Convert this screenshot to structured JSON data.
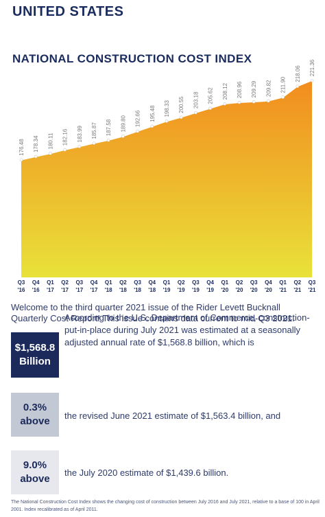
{
  "header": {
    "country": "UNITED STATES",
    "chart_title": "NATIONAL CONSTRUCTION COST INDEX"
  },
  "chart_data": {
    "type": "area",
    "title": "NATIONAL CONSTRUCTION COST INDEX",
    "categories": [
      [
        "Q3",
        "'16"
      ],
      [
        "Q4",
        "'16"
      ],
      [
        "Q1",
        "'17"
      ],
      [
        "Q2",
        "'17"
      ],
      [
        "Q3",
        "'17"
      ],
      [
        "Q4",
        "'17"
      ],
      [
        "Q1",
        "'18"
      ],
      [
        "Q2",
        "'18"
      ],
      [
        "Q3",
        "'18"
      ],
      [
        "Q4",
        "'18"
      ],
      [
        "Q1",
        "'19"
      ],
      [
        "Q2",
        "'19"
      ],
      [
        "Q3",
        "'19"
      ],
      [
        "Q4",
        "'19"
      ],
      [
        "Q1",
        "'20"
      ],
      [
        "Q2",
        "'20"
      ],
      [
        "Q3",
        "'20"
      ],
      [
        "Q4",
        "'20"
      ],
      [
        "Q1",
        "'21"
      ],
      [
        "Q2",
        "'21"
      ],
      [
        "Q3",
        "'21"
      ]
    ],
    "values": [
      176.48,
      178.34,
      180.11,
      182.16,
      183.99,
      185.87,
      187.58,
      189.8,
      192.66,
      195.48,
      198.33,
      200.55,
      203.18,
      205.62,
      208.12,
      208.96,
      209.29,
      209.82,
      211.9,
      218.06,
      221.36
    ],
    "value_labels": [
      "176.48",
      "178.34",
      "180.11",
      "182.16",
      "183.99",
      "185.87",
      "187.58",
      "189.80",
      "192.66",
      "195.48",
      "198.33",
      "200.55",
      "203.18",
      "205.62",
      "208.12",
      "208.96",
      "209.29",
      "209.82",
      "211.90",
      "218.06",
      "221.36"
    ],
    "ylim": [
      110,
      230
    ],
    "grid": false,
    "colors": {
      "top": "#f28c1e",
      "bottom": "#e9e23a",
      "line": "#ffffff",
      "label": "#7a7a7a",
      "axis_label": "#1b2a5b"
    }
  },
  "intro_text": "Welcome to the third quarter 2021 issue of the Rider Levett Bucknall Quarterly Cost Report! This issue contains data current to mid-Q3 2021.",
  "stats": [
    {
      "value": "$1,568.8",
      "unit": "Billion",
      "text": "According to the U.S. Department of Commerce, construction-put-in-place during July 2021 was estimated at a seasonally adjusted annual rate of $1,568.8 billion, which is"
    },
    {
      "value": "0.3%",
      "unit": "above",
      "text": "the revised June 2021 estimate of $1,563.4 billion, and"
    },
    {
      "value": "9.0%",
      "unit": "above",
      "text": "the July 2020 estimate of $1,439.6 billion."
    }
  ],
  "footnote": "The National Construction Cost Index shows the changing cost of construction between July 2016 and July 2021, relative to a base of 100 in April 2001.  Index recalibrated as of April 2011."
}
